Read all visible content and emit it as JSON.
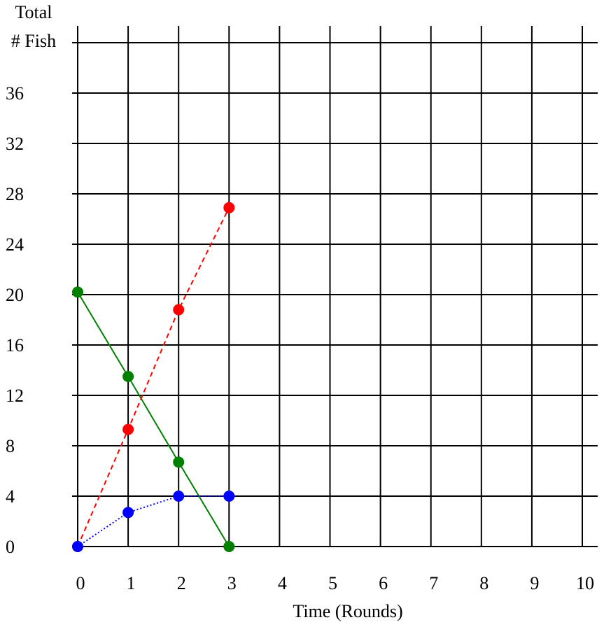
{
  "chart_data": {
    "type": "line",
    "xlabel": "Time (Rounds)",
    "ylabel_lines": [
      "Total",
      "# Fish"
    ],
    "xlim": [
      0,
      10
    ],
    "ylim": [
      0,
      40
    ],
    "x_ticks": [
      0,
      1,
      2,
      3,
      4,
      5,
      6,
      7,
      8,
      9,
      10
    ],
    "y_ticks": [
      0,
      4,
      8,
      12,
      16,
      20,
      24,
      28,
      32,
      36
    ],
    "grid": true,
    "series": [
      {
        "color": "#008000",
        "line_style": "solid",
        "points": [
          [
            0,
            20.2
          ],
          [
            1,
            13.5
          ],
          [
            2,
            6.7
          ],
          [
            3,
            0
          ]
        ]
      },
      {
        "color": "#ff0000",
        "line_style": "dashed",
        "points": [
          [
            0,
            0
          ],
          [
            1,
            9.3
          ],
          [
            2,
            18.8
          ],
          [
            3,
            26.9
          ]
        ]
      },
      {
        "color": "#0000ff",
        "line_style": "dotted",
        "points": [
          [
            0,
            0
          ],
          [
            1,
            2.7
          ],
          [
            2,
            4
          ],
          [
            3,
            4
          ]
        ]
      }
    ]
  }
}
